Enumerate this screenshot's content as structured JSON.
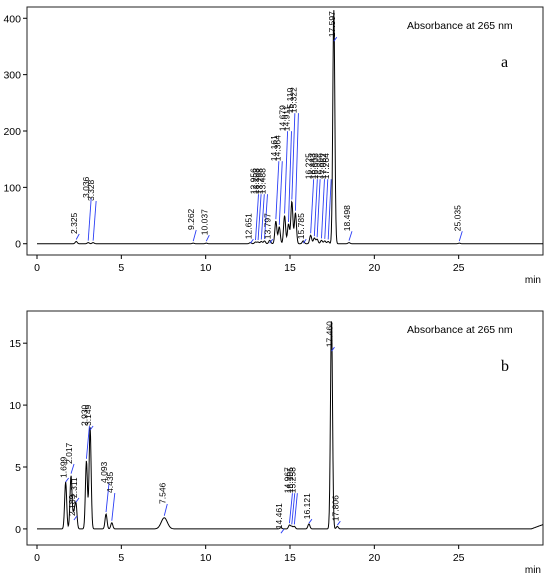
{
  "chart_data": [
    {
      "type": "line",
      "panel": "a",
      "annotation": "Absorbance at 265 nm",
      "xlabel": "min",
      "ylabel": "",
      "xlim": [
        0,
        30
      ],
      "ylim": [
        -20,
        420
      ],
      "xticks": [
        "0",
        "5",
        "10",
        "15",
        "20",
        "25"
      ],
      "yticks": [
        "0",
        "100",
        "200",
        "300",
        "400"
      ],
      "grid": false,
      "peaks": [
        {
          "rt": 2.325,
          "label": "2.325",
          "height": 4
        },
        {
          "rt": 3.036,
          "label": "3.036",
          "height": 2
        },
        {
          "rt": 3.328,
          "label": "3.328",
          "height": 2
        },
        {
          "rt": 9.262,
          "label": "9.262",
          "height": 1
        },
        {
          "rt": 10.037,
          "label": "10.037",
          "height": 1
        },
        {
          "rt": 12.651,
          "label": "12.651",
          "height": 2
        },
        {
          "rt": 12.956,
          "label": "12.956",
          "height": 3
        },
        {
          "rt": 13.108,
          "label": "13.108",
          "height": 3
        },
        {
          "rt": 13.298,
          "label": "13.298",
          "height": 4
        },
        {
          "rt": 13.488,
          "label": "13.488",
          "height": 5
        },
        {
          "rt": 13.797,
          "label": "13.797",
          "height": 6
        },
        {
          "rt": 14.161,
          "label": "14.161",
          "height": 40
        },
        {
          "rt": 14.364,
          "label": "14.364",
          "height": 30
        },
        {
          "rt": 14.679,
          "label": "14.679",
          "height": 50
        },
        {
          "rt": 14.911,
          "label": "14.911",
          "height": 35
        },
        {
          "rt": 15.11,
          "label": "15.110",
          "height": 75
        },
        {
          "rt": 15.322,
          "label": "15.322",
          "height": 55
        },
        {
          "rt": 15.785,
          "label": "15.785",
          "height": 5
        },
        {
          "rt": 16.225,
          "label": "16.225",
          "height": 15
        },
        {
          "rt": 16.443,
          "label": "16.443",
          "height": 10
        },
        {
          "rt": 16.608,
          "label": "16.608",
          "height": 8
        },
        {
          "rt": 16.866,
          "label": "16.866",
          "height": 6
        },
        {
          "rt": 17.062,
          "label": "17.062",
          "height": 5
        },
        {
          "rt": 17.264,
          "label": "17.264",
          "height": 4
        },
        {
          "rt": 17.597,
          "label": "17.597",
          "height": 415
        },
        {
          "rt": 18.498,
          "label": "18.498",
          "height": 2
        },
        {
          "rt": 25.035,
          "label": "25.035",
          "height": 1
        }
      ]
    },
    {
      "type": "line",
      "panel": "b",
      "annotation": "Absorbance at 265 nm",
      "xlabel": "min",
      "ylabel": "",
      "xlim": [
        0,
        30
      ],
      "ylim": [
        -1.3,
        17.6
      ],
      "xticks": [
        "0",
        "5",
        "10",
        "15",
        "20",
        "25"
      ],
      "yticks": [
        "0",
        "5",
        "10",
        "15"
      ],
      "grid": false,
      "peaks": [
        {
          "rt": 1.699,
          "label": "1.699",
          "height": 3.8
        },
        {
          "rt": 2.017,
          "label": "2.017",
          "height": 4.3
        },
        {
          "rt": 2.189,
          "label": "2.189",
          "height": 1.2
        },
        {
          "rt": 2.311,
          "label": "2.311",
          "height": 2.0
        },
        {
          "rt": 2.93,
          "label": "2.930",
          "height": 5.5
        },
        {
          "rt": 3.149,
          "label": "3.149",
          "height": 8.2
        },
        {
          "rt": 4.093,
          "label": "4.093",
          "height": 1.2
        },
        {
          "rt": 4.435,
          "label": "4.435",
          "height": 0.5
        },
        {
          "rt": 7.546,
          "label": "7.546",
          "height": 0.9
        },
        {
          "rt": 14.461,
          "label": "14.461",
          "height": 0.1
        },
        {
          "rt": 14.967,
          "label": "14.967",
          "height": 0.3
        },
        {
          "rt": 15.105,
          "label": "15.105",
          "height": 0.2
        },
        {
          "rt": 15.258,
          "label": "15.258",
          "height": 0.2
        },
        {
          "rt": 16.121,
          "label": "16.121",
          "height": 0.4
        },
        {
          "rt": 17.46,
          "label": "17.460",
          "height": 17.0
        },
        {
          "rt": 17.806,
          "label": "17.806",
          "height": 0.2
        }
      ]
    }
  ]
}
